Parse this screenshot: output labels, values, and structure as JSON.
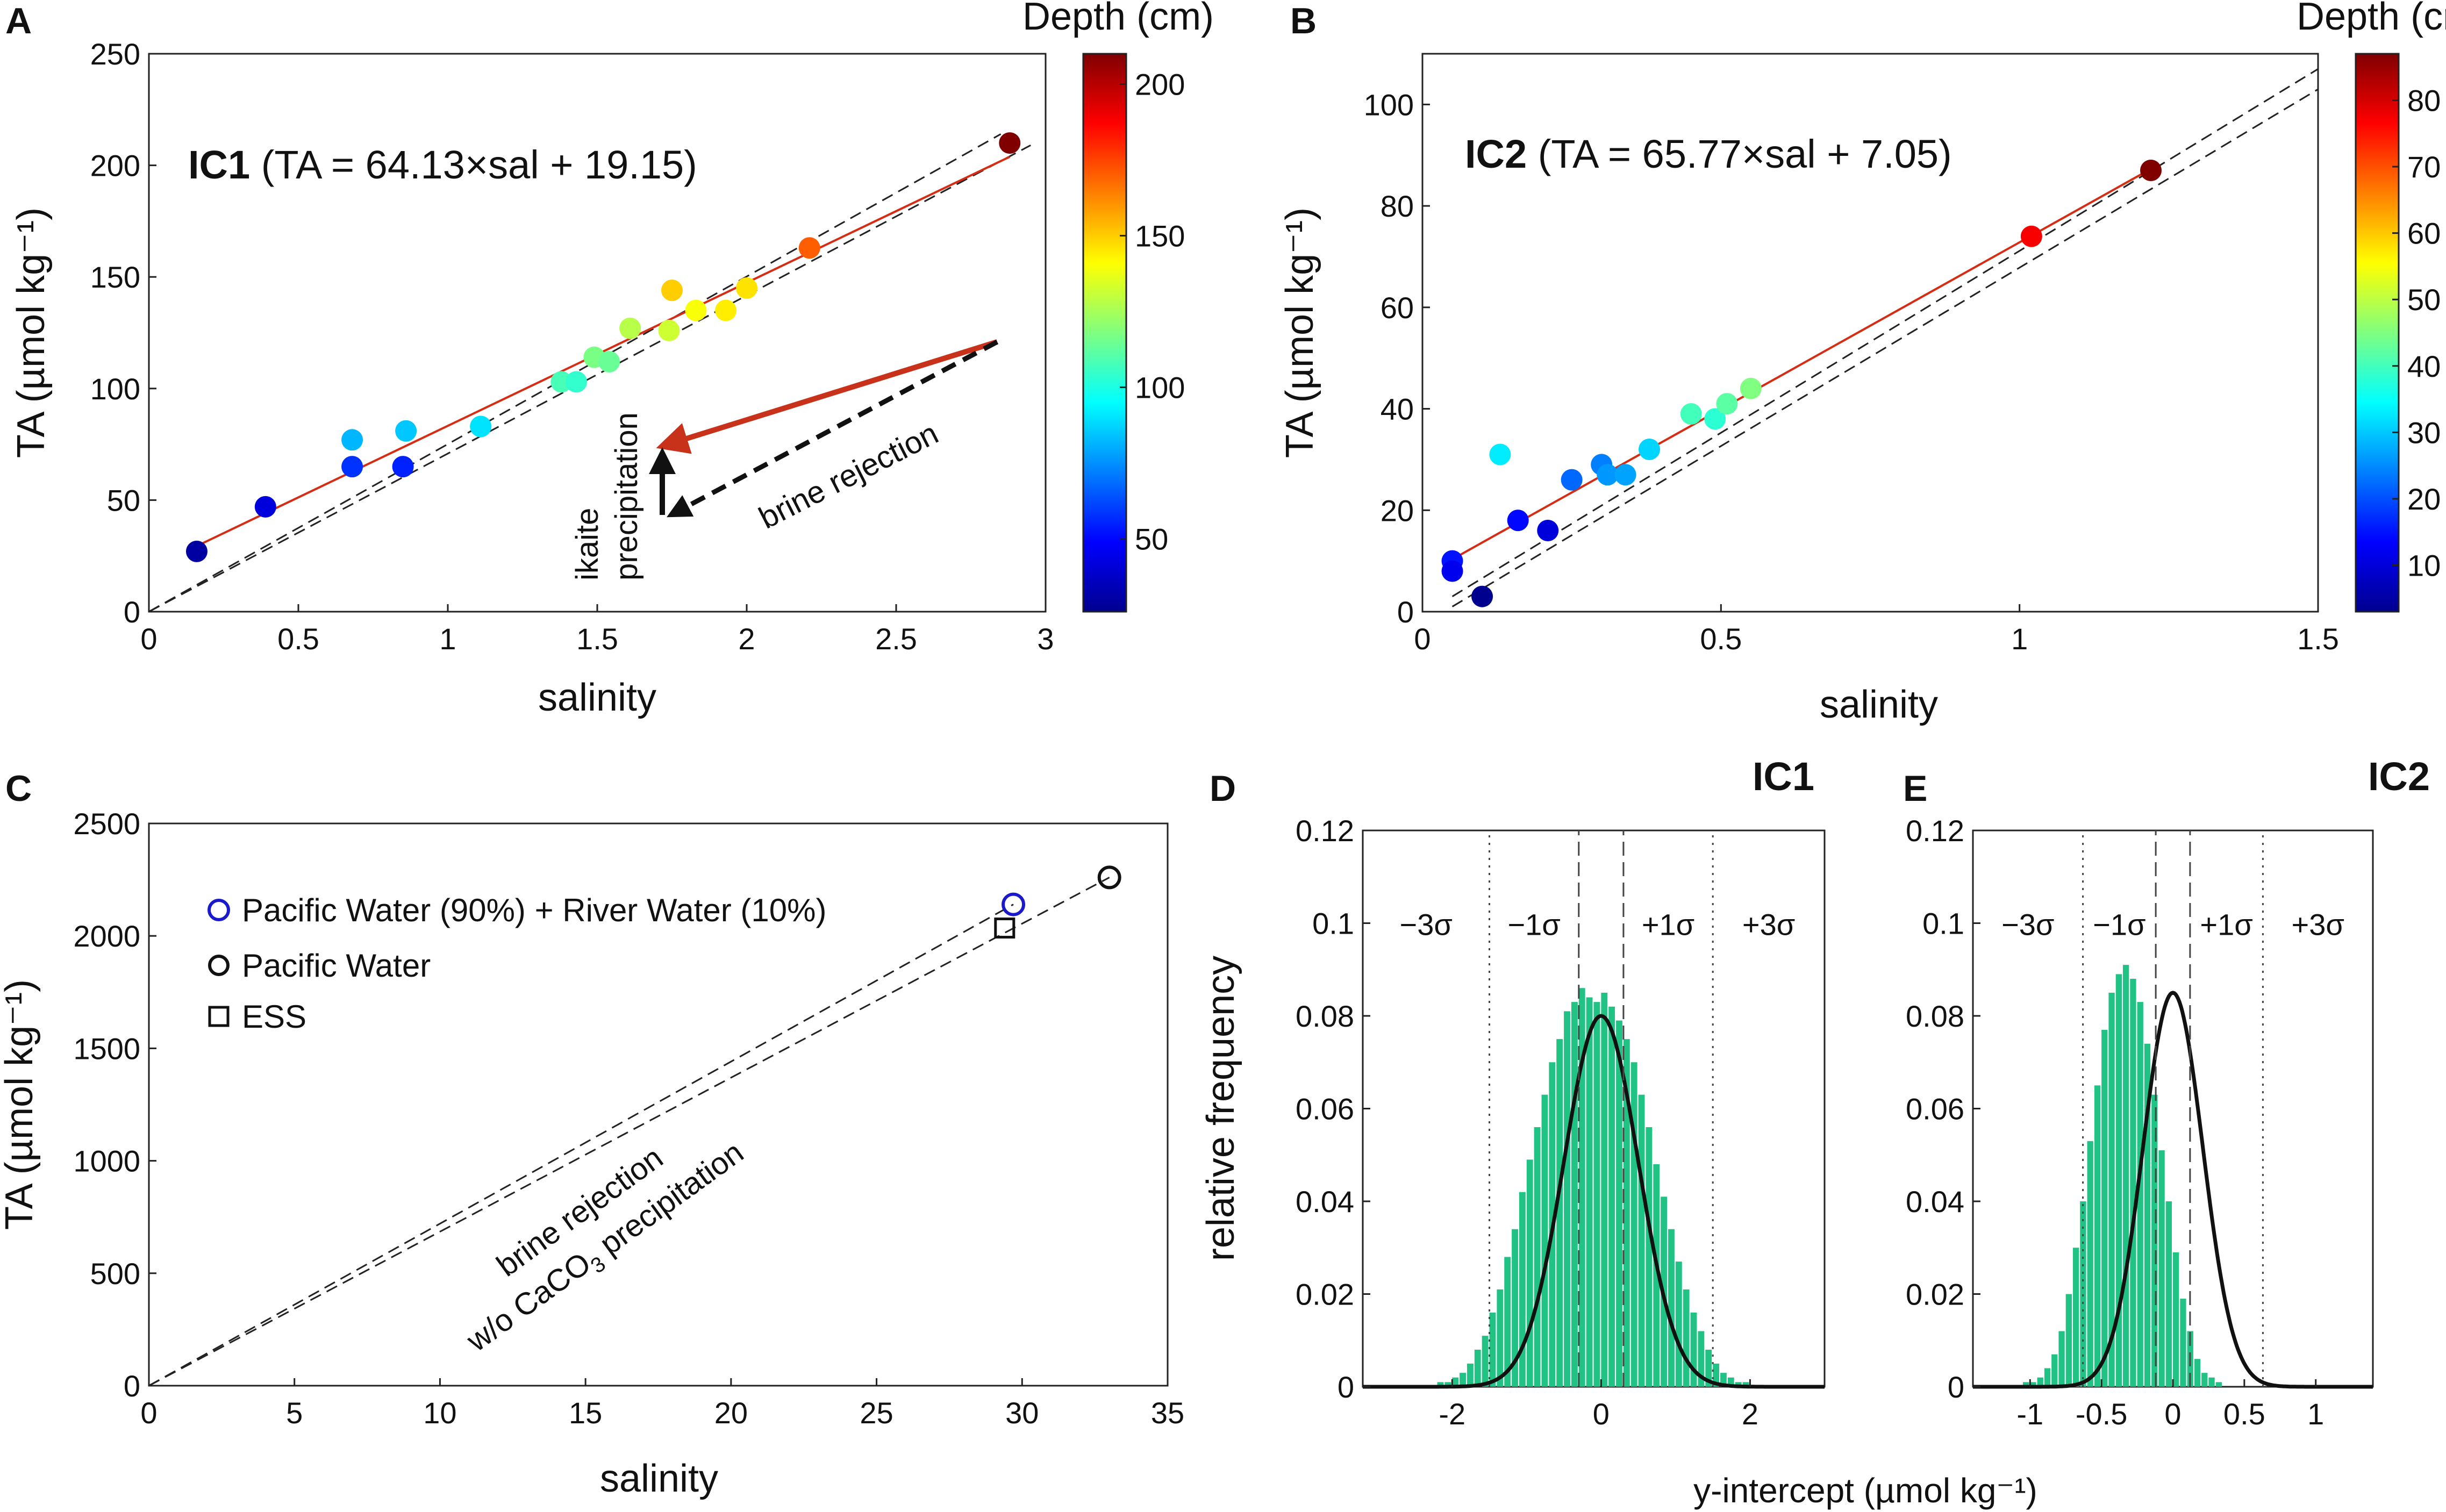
{
  "panel_letters": [
    "A",
    "B",
    "C",
    "D",
    "E"
  ],
  "chart_data": [
    {
      "panel": "A",
      "type": "scatter",
      "title": "",
      "xlabel": "salinity",
      "ylabel": "TA (µmol kg⁻¹)",
      "xlim": [
        0,
        3
      ],
      "ylim": [
        0,
        250
      ],
      "xticks": [
        0,
        0.5,
        1,
        1.5,
        2,
        2.5,
        3
      ],
      "xtick_labels": [
        "0",
        "0.5",
        "1",
        "1.5",
        "2",
        "2.5",
        "3"
      ],
      "yticks": [
        0,
        50,
        100,
        150,
        200,
        250
      ],
      "ytick_labels": [
        "0",
        "50",
        "100",
        "150",
        "200",
        "250"
      ],
      "equation_label": "IC1",
      "equation_text": " (TA = 64.13×sal + 19.15)",
      "fit": {
        "slope": 64.13,
        "intercept": 19.15,
        "x_range": [
          0.16,
          2.88
        ],
        "color": "#d62c14"
      },
      "dilution_lines": [
        {
          "x": [
            0,
            2.85
          ],
          "y": [
            0,
            214
          ]
        },
        {
          "x": [
            0,
            2.95
          ],
          "y": [
            0,
            209
          ]
        }
      ],
      "colorbar": {
        "label": "Depth (cm)",
        "min": 26,
        "max": 210,
        "ticks": [
          50,
          100,
          150,
          200
        ],
        "tick_labels": [
          "50",
          "100",
          "150",
          "200"
        ]
      },
      "points": [
        {
          "x": 0.16,
          "y": 27,
          "depth": 30
        },
        {
          "x": 0.39,
          "y": 47,
          "depth": 42
        },
        {
          "x": 0.68,
          "y": 65,
          "depth": 58
        },
        {
          "x": 0.68,
          "y": 77,
          "depth": 82
        },
        {
          "x": 0.85,
          "y": 65,
          "depth": 55
        },
        {
          "x": 0.86,
          "y": 81,
          "depth": 85
        },
        {
          "x": 1.11,
          "y": 83,
          "depth": 90
        },
        {
          "x": 1.38,
          "y": 103,
          "depth": 108
        },
        {
          "x": 1.43,
          "y": 103,
          "depth": 104
        },
        {
          "x": 1.49,
          "y": 114,
          "depth": 117
        },
        {
          "x": 1.54,
          "y": 112,
          "depth": 114
        },
        {
          "x": 1.61,
          "y": 127,
          "depth": 128
        },
        {
          "x": 1.74,
          "y": 126,
          "depth": 132
        },
        {
          "x": 1.75,
          "y": 144,
          "depth": 150
        },
        {
          "x": 1.83,
          "y": 135,
          "depth": 140
        },
        {
          "x": 1.93,
          "y": 135,
          "depth": 144
        },
        {
          "x": 2.0,
          "y": 145,
          "depth": 146
        },
        {
          "x": 2.21,
          "y": 163,
          "depth": 170
        },
        {
          "x": 2.88,
          "y": 210,
          "depth": 210
        }
      ],
      "annotations": {
        "ikaite": [
          "ikaite",
          "precipitation"
        ],
        "brine": "brine rejection"
      }
    },
    {
      "panel": "B",
      "type": "scatter",
      "title": "",
      "xlabel": "salinity",
      "ylabel": "TA (µmol kg⁻¹)",
      "xlim": [
        0,
        1.5
      ],
      "ylim": [
        0,
        110
      ],
      "xticks": [
        0,
        0.5,
        1,
        1.5
      ],
      "xtick_labels": [
        "0",
        "0.5",
        "1",
        "1.5"
      ],
      "yticks": [
        0,
        20,
        40,
        60,
        80,
        100
      ],
      "ytick_labels": [
        "0",
        "20",
        "40",
        "60",
        "80",
        "100"
      ],
      "equation_label": "IC2",
      "equation_text": " (TA = 65.77×sal + 7.05)",
      "fit": {
        "slope": 65.77,
        "intercept": 7.05,
        "x_range": [
          0.05,
          1.22
        ],
        "color": "#d62c14"
      },
      "dilution_lines": [
        {
          "x": [
            0.05,
            1.5
          ],
          "y": [
            3,
            107
          ]
        },
        {
          "x": [
            0.05,
            1.5
          ],
          "y": [
            1,
            103
          ]
        }
      ],
      "colorbar": {
        "label": "Depth (cm)",
        "min": 3,
        "max": 87,
        "ticks": [
          10,
          20,
          30,
          40,
          50,
          60,
          70,
          80
        ],
        "tick_labels": [
          "10",
          "20",
          "30",
          "40",
          "50",
          "60",
          "70",
          "80"
        ]
      },
      "points": [
        {
          "x": 0.05,
          "y": 10,
          "depth": 15
        },
        {
          "x": 0.05,
          "y": 8,
          "depth": 12
        },
        {
          "x": 0.1,
          "y": 3,
          "depth": 3
        },
        {
          "x": 0.13,
          "y": 31,
          "depth": 33
        },
        {
          "x": 0.16,
          "y": 18,
          "depth": 14
        },
        {
          "x": 0.21,
          "y": 16,
          "depth": 10
        },
        {
          "x": 0.25,
          "y": 26,
          "depth": 22
        },
        {
          "x": 0.3,
          "y": 29,
          "depth": 24
        },
        {
          "x": 0.31,
          "y": 27,
          "depth": 26
        },
        {
          "x": 0.34,
          "y": 27,
          "depth": 27
        },
        {
          "x": 0.38,
          "y": 32,
          "depth": 31
        },
        {
          "x": 0.45,
          "y": 39,
          "depth": 40
        },
        {
          "x": 0.49,
          "y": 38,
          "depth": 38
        },
        {
          "x": 0.51,
          "y": 41,
          "depth": 42
        },
        {
          "x": 0.55,
          "y": 44,
          "depth": 45
        },
        {
          "x": 1.02,
          "y": 74,
          "depth": 77
        },
        {
          "x": 1.22,
          "y": 87,
          "depth": 87
        }
      ]
    },
    {
      "panel": "C",
      "type": "scatter",
      "title": "",
      "xlabel": "salinity",
      "ylabel": "TA (µmol kg⁻¹)",
      "xlim": [
        0,
        35
      ],
      "ylim": [
        0,
        2500
      ],
      "xticks": [
        0,
        5,
        10,
        15,
        20,
        25,
        30,
        35
      ],
      "xtick_labels": [
        "0",
        "5",
        "10",
        "15",
        "20",
        "25",
        "30",
        "35"
      ],
      "yticks": [
        0,
        500,
        1000,
        1500,
        2000,
        2500
      ],
      "ytick_labels": [
        "0",
        "500",
        "1000",
        "1500",
        "2000",
        "2500"
      ],
      "series": [
        {
          "name": "Pacific Water (90%) + River Water (10%)",
          "marker": "circle",
          "color": "#1a1acc",
          "x": [
            29.7
          ],
          "y": [
            2140
          ]
        },
        {
          "name": "Pacific Water",
          "marker": "circle",
          "color": "#111111",
          "x": [
            33.0
          ],
          "y": [
            2260
          ]
        },
        {
          "name": "ESS",
          "marker": "square",
          "color": "#111111",
          "x": [
            29.4
          ],
          "y": [
            2035
          ]
        }
      ],
      "dilution_lines": [
        {
          "x": [
            0,
            29.7
          ],
          "y": [
            0,
            2140
          ]
        },
        {
          "x": [
            0,
            33.0
          ],
          "y": [
            0,
            2260
          ]
        }
      ],
      "annotations": {
        "line1": "brine rejection",
        "line2_prefix": "w/o CaCO",
        "line2_sub": "3",
        "line2_suffix": " precipitation"
      },
      "legend_position": "top-left"
    },
    {
      "panel": "D",
      "type": "bar",
      "title": "IC1",
      "xlabel": "",
      "ylabel": "relative frequency",
      "xlim": [
        -3.2,
        3.0
      ],
      "ylim": [
        0,
        0.12
      ],
      "xticks": [
        -2,
        0,
        2
      ],
      "xtick_labels": [
        "-2",
        "0",
        "2"
      ],
      "yticks": [
        0,
        0.02,
        0.04,
        0.06,
        0.08,
        0.1,
        0.12
      ],
      "ytick_labels": [
        "0",
        "0.02",
        "0.04",
        "0.06",
        "0.08",
        "0.1",
        "0.12"
      ],
      "histogram": {
        "bin_start": -3.0,
        "bin_width": 0.1,
        "values": [
          0,
          0,
          0,
          0,
          0,
          0,
          0,
          0,
          0.001,
          0.001,
          0.002,
          0.003,
          0.005,
          0.008,
          0.011,
          0.016,
          0.021,
          0.028,
          0.034,
          0.042,
          0.049,
          0.056,
          0.063,
          0.07,
          0.075,
          0.081,
          0.083,
          0.086,
          0.084,
          0.083,
          0.085,
          0.082,
          0.079,
          0.075,
          0.07,
          0.063,
          0.056,
          0.048,
          0.041,
          0.034,
          0.027,
          0.021,
          0.016,
          0.012,
          0.008,
          0.005,
          0.003,
          0.002,
          0.001,
          0.001,
          0,
          0,
          0,
          0,
          0,
          0,
          0,
          0,
          0,
          0
        ],
        "color": "#21c384"
      },
      "normal_fit": {
        "mean": 0.0,
        "sigma": 0.5,
        "peak": 0.08
      },
      "sigma_lines": {
        "one": [
          -0.3,
          0.3
        ],
        "three": [
          -1.5,
          1.5
        ]
      },
      "sigma_labels": [
        "−3σ",
        "−1σ",
        "+1σ",
        "+3σ"
      ]
    },
    {
      "panel": "E",
      "type": "bar",
      "title": "IC2",
      "xlabel": "",
      "ylabel": "",
      "xlim": [
        -1.4,
        1.4
      ],
      "ylim": [
        0,
        0.12
      ],
      "xticks": [
        -1,
        -0.5,
        0,
        0.5,
        1
      ],
      "xtick_labels": [
        "-1",
        "-0.5",
        "0",
        "0.5",
        "1"
      ],
      "yticks": [
        0,
        0.02,
        0.04,
        0.06,
        0.08,
        0.1,
        0.12
      ],
      "ytick_labels": [
        "0",
        "0.02",
        "0.04",
        "0.06",
        "0.08",
        "0.1",
        "0.12"
      ],
      "histogram": {
        "bin_start": -1.3,
        "bin_width": 0.05,
        "values": [
          0,
          0,
          0,
          0,
          0,
          0.001,
          0.001,
          0.002,
          0.004,
          0.007,
          0.012,
          0.02,
          0.03,
          0.04,
          0.053,
          0.065,
          0.077,
          0.085,
          0.089,
          0.091,
          0.088,
          0.083,
          0.074,
          0.063,
          0.051,
          0.04,
          0.029,
          0.019,
          0.012,
          0.006,
          0.003,
          0.002,
          0.001,
          0,
          0,
          0,
          0,
          0,
          0,
          0,
          0,
          0,
          0,
          0,
          0,
          0,
          0,
          0,
          0,
          0,
          0,
          0
        ],
        "color": "#21c384"
      },
      "normal_fit": {
        "mean": 0.0,
        "sigma": 0.21,
        "peak": 0.085
      },
      "sigma_lines": {
        "one": [
          -0.12,
          0.12
        ],
        "three": [
          -0.63,
          0.63
        ]
      },
      "sigma_labels": [
        "−3σ",
        "−1σ",
        "+1σ",
        "+3σ"
      ]
    }
  ],
  "shared_xlabel_DE": "y-intercept (µmol kg⁻¹)"
}
